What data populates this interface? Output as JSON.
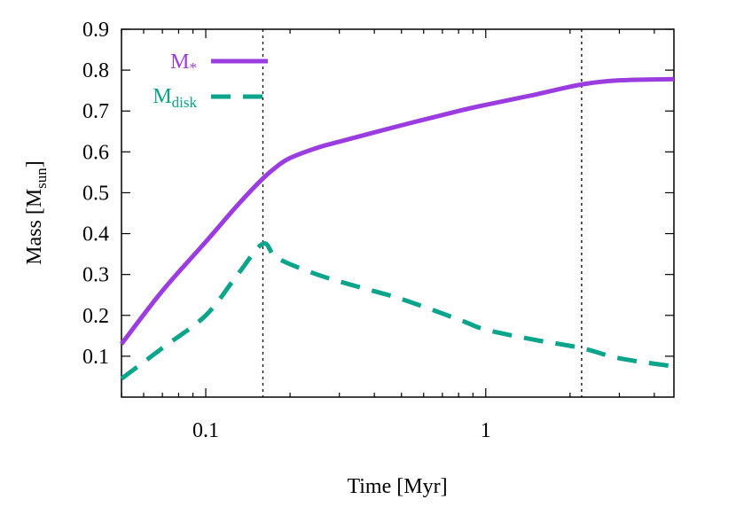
{
  "chart_data": {
    "type": "line",
    "title": "",
    "xlabel": "Time [Myr]",
    "ylabel": {
      "main": "Mass [M",
      "sub": "sun",
      "close": "]"
    },
    "xscale": "log",
    "xlim": [
      0.05,
      4.7
    ],
    "ylim": [
      0,
      0.9
    ],
    "x_ticks": [
      0.1,
      1
    ],
    "x_tick_labels": [
      "0.1",
      "1"
    ],
    "y_ticks": [
      0.1,
      0.2,
      0.3,
      0.4,
      0.5,
      0.6,
      0.7,
      0.8,
      0.9
    ],
    "y_tick_labels": [
      "0.1",
      "0.2",
      "0.3",
      "0.4",
      "0.5",
      "0.6",
      "0.7",
      "0.8",
      "0.9"
    ],
    "vertical_lines": [
      0.16,
      2.2
    ],
    "legend_position": "top-left",
    "series": [
      {
        "name": "M*",
        "label_main": "M",
        "label_sub": "*",
        "color": "#9b3ce0",
        "dash": "solid",
        "x": [
          0.05,
          0.07,
          0.1,
          0.13,
          0.16,
          0.18,
          0.2,
          0.25,
          0.3,
          0.5,
          0.8,
          1.0,
          1.5,
          2.2,
          3.0,
          4.7
        ],
        "y": [
          0.13,
          0.26,
          0.38,
          0.47,
          0.535,
          0.565,
          0.585,
          0.61,
          0.625,
          0.665,
          0.7,
          0.715,
          0.74,
          0.765,
          0.775,
          0.778
        ]
      },
      {
        "name": "Mdisk",
        "label_main": "M",
        "label_sub": "disk",
        "color": "#0aa58a",
        "dash": "dashed",
        "x": [
          0.05,
          0.07,
          0.1,
          0.13,
          0.16,
          0.18,
          0.25,
          0.35,
          0.5,
          0.8,
          1.0,
          1.5,
          2.2,
          3.0,
          4.7
        ],
        "y": [
          0.045,
          0.12,
          0.2,
          0.3,
          0.375,
          0.34,
          0.3,
          0.27,
          0.24,
          0.19,
          0.165,
          0.14,
          0.12,
          0.095,
          0.075
        ]
      }
    ]
  }
}
